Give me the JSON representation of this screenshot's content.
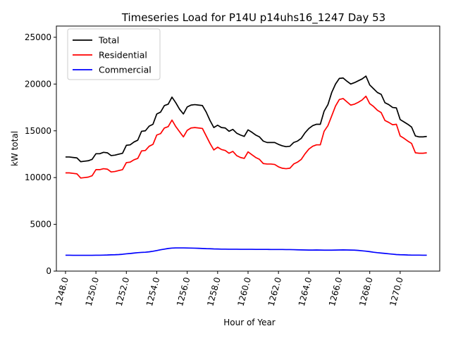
{
  "chart_data": {
    "type": "line",
    "title": "Timeseries Load for P14U p14uhs16_1247  Day 53",
    "xlabel": "Hour of Year",
    "ylabel": "kW total",
    "xlim": [
      1247.4,
      1272.6
    ],
    "ylim": [
      0,
      26200
    ],
    "x_ticks": [
      1248,
      1250,
      1252,
      1254,
      1256,
      1258,
      1260,
      1262,
      1264,
      1266,
      1268,
      1270
    ],
    "x_tick_labels": [
      "1248.0",
      "1250.0",
      "1252.0",
      "1254.0",
      "1256.0",
      "1258.0",
      "1260.0",
      "1262.0",
      "1264.0",
      "1266.0",
      "1268.0",
      "1270.0"
    ],
    "y_ticks": [
      0,
      5000,
      10000,
      15000,
      20000,
      25000
    ],
    "y_tick_labels": [
      "0",
      "5000",
      "10000",
      "15000",
      "20000",
      "25000"
    ],
    "legend_position": "top-left",
    "x": [
      1248.0,
      1248.25,
      1248.5,
      1248.75,
      1249.0,
      1249.25,
      1249.5,
      1249.75,
      1250.0,
      1250.25,
      1250.5,
      1250.75,
      1251.0,
      1251.25,
      1251.5,
      1251.75,
      1252.0,
      1252.25,
      1252.5,
      1252.75,
      1253.0,
      1253.25,
      1253.5,
      1253.75,
      1254.0,
      1254.25,
      1254.5,
      1254.75,
      1255.0,
      1255.25,
      1255.5,
      1255.75,
      1256.0,
      1256.25,
      1256.5,
      1256.75,
      1257.0,
      1257.25,
      1257.5,
      1257.75,
      1258.0,
      1258.25,
      1258.5,
      1258.75,
      1259.0,
      1259.25,
      1259.5,
      1259.75,
      1260.0,
      1260.25,
      1260.5,
      1260.75,
      1261.0,
      1261.25,
      1261.5,
      1261.75,
      1262.0,
      1262.25,
      1262.5,
      1262.75,
      1263.0,
      1263.25,
      1263.5,
      1263.75,
      1264.0,
      1264.25,
      1264.5,
      1264.75,
      1265.0,
      1265.25,
      1265.5,
      1265.75,
      1266.0,
      1266.25,
      1266.5,
      1266.75,
      1267.0,
      1267.25,
      1267.5,
      1267.75,
      1268.0,
      1268.25,
      1268.5,
      1268.75,
      1269.0,
      1269.25,
      1269.5,
      1269.75,
      1270.0,
      1270.25,
      1270.5,
      1270.75,
      1271.0,
      1271.25,
      1271.5,
      1271.75
    ],
    "series": [
      {
        "name": "Total",
        "color": "#000000",
        "values": [
          12200,
          12200,
          12150,
          12100,
          11700,
          11750,
          11800,
          11950,
          12550,
          12550,
          12700,
          12650,
          12350,
          12400,
          12500,
          12600,
          13450,
          13500,
          13800,
          14000,
          14950,
          15000,
          15500,
          15700,
          16800,
          17000,
          17700,
          17850,
          18600,
          18000,
          17300,
          16800,
          17550,
          17750,
          17800,
          17750,
          17700,
          17000,
          16100,
          15350,
          15600,
          15350,
          15300,
          14950,
          15150,
          14750,
          14550,
          14400,
          15100,
          14850,
          14550,
          14350,
          13900,
          13750,
          13750,
          13750,
          13550,
          13400,
          13300,
          13350,
          13750,
          13900,
          14200,
          14800,
          15250,
          15550,
          15700,
          15700,
          17100,
          17800,
          19100,
          20000,
          20600,
          20650,
          20300,
          20000,
          20150,
          20350,
          20550,
          20850,
          19900,
          19500,
          19100,
          18900,
          18000,
          17800,
          17500,
          17450,
          16200,
          15950,
          15700,
          15400,
          14450,
          14350,
          14350,
          14400
        ]
      },
      {
        "name": "Residential",
        "color": "#ff0000",
        "values": [
          10500,
          10500,
          10450,
          10400,
          9950,
          10000,
          10050,
          10200,
          10850,
          10850,
          10950,
          10900,
          10600,
          10650,
          10750,
          10850,
          11600,
          11650,
          11900,
          12050,
          12850,
          12900,
          13350,
          13550,
          14550,
          14700,
          15300,
          15450,
          16150,
          15450,
          14900,
          14350,
          15050,
          15300,
          15350,
          15300,
          15250,
          14450,
          13650,
          12950,
          13250,
          13000,
          12900,
          12600,
          12800,
          12350,
          12150,
          12050,
          12750,
          12450,
          12150,
          11950,
          11500,
          11450,
          11450,
          11400,
          11150,
          11000,
          10950,
          11000,
          11450,
          11650,
          11950,
          12550,
          13050,
          13350,
          13500,
          13500,
          14950,
          15550,
          16600,
          17650,
          18350,
          18450,
          18100,
          17750,
          17850,
          18050,
          18300,
          18700,
          17900,
          17600,
          17200,
          16950,
          16100,
          15900,
          15650,
          15700,
          14450,
          14200,
          13900,
          13650,
          12650,
          12600,
          12600,
          12650
        ]
      },
      {
        "name": "Commercial",
        "color": "#0000ff",
        "values": [
          1700,
          1700,
          1690,
          1690,
          1690,
          1690,
          1690,
          1690,
          1700,
          1700,
          1710,
          1720,
          1740,
          1750,
          1770,
          1800,
          1850,
          1880,
          1930,
          1970,
          2000,
          2020,
          2060,
          2120,
          2200,
          2280,
          2350,
          2420,
          2460,
          2480,
          2480,
          2480,
          2470,
          2460,
          2450,
          2440,
          2420,
          2400,
          2390,
          2370,
          2360,
          2350,
          2350,
          2340,
          2340,
          2340,
          2330,
          2330,
          2330,
          2330,
          2320,
          2320,
          2320,
          2320,
          2310,
          2310,
          2310,
          2310,
          2300,
          2300,
          2290,
          2280,
          2270,
          2260,
          2250,
          2250,
          2260,
          2250,
          2240,
          2240,
          2240,
          2250,
          2260,
          2270,
          2260,
          2250,
          2240,
          2210,
          2170,
          2130,
          2080,
          2020,
          1970,
          1930,
          1890,
          1850,
          1810,
          1770,
          1750,
          1740,
          1720,
          1710,
          1710,
          1710,
          1700,
          1700
        ]
      }
    ]
  }
}
